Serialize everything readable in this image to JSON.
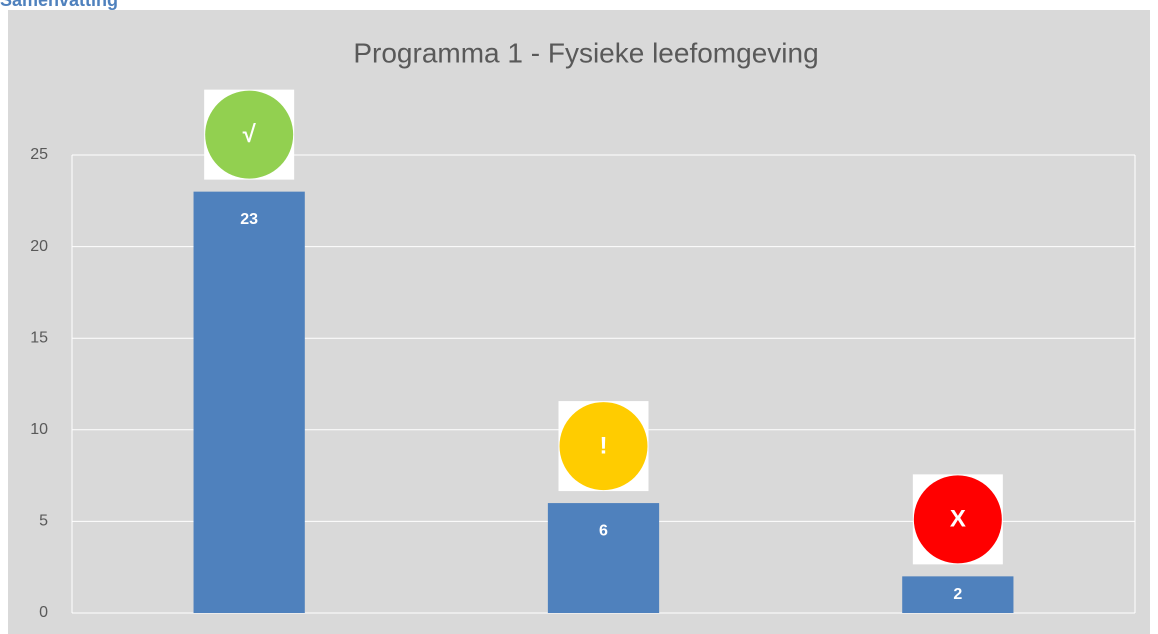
{
  "heading": "Samenvatting",
  "chart_data": {
    "type": "bar",
    "title": "Programma 1 - Fysieke leefomgeving",
    "categories": [
      null,
      null,
      null
    ],
    "values": [
      23,
      6,
      2
    ],
    "color": "#4f81bd",
    "markers": [
      "√",
      "!",
      "X"
    ],
    "marker_colors": [
      "#92d050",
      "#ffcc00",
      "#ff0000"
    ],
    "ylim": [
      0,
      25
    ],
    "yticks": [
      0,
      5,
      10,
      15,
      20,
      25
    ],
    "grid": true
  }
}
